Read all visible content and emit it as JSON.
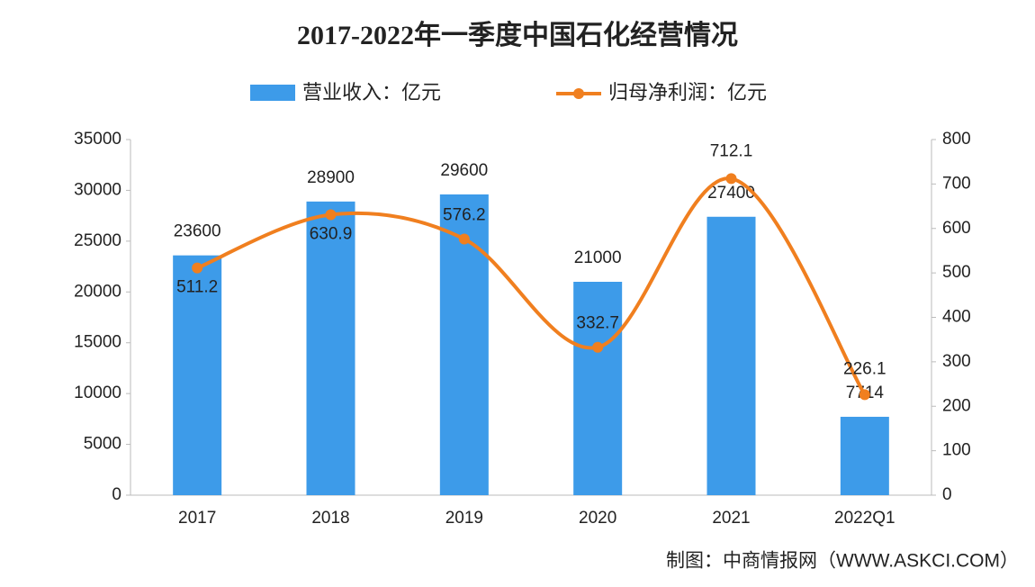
{
  "chart_data": {
    "type": "bar",
    "title": "2017-2022年一季度中国石化经营情况",
    "categories": [
      "2017",
      "2018",
      "2019",
      "2020",
      "2021",
      "2022Q1"
    ],
    "series": [
      {
        "name": "营业收入：亿元",
        "type": "bar",
        "color": "#3d9be9",
        "values": [
          23600,
          28900,
          29600,
          21000,
          27400,
          7714
        ]
      },
      {
        "name": "归母净利润：亿元",
        "type": "line",
        "axis": "y2",
        "color": "#f07f1f",
        "values": [
          511.2,
          630.9,
          576.2,
          332.7,
          712.1,
          226.1
        ]
      }
    ],
    "ylim": [
      0,
      35000
    ],
    "yticks": [
      0,
      5000,
      10000,
      15000,
      20000,
      25000,
      30000,
      35000
    ],
    "y2lim": [
      0,
      800
    ],
    "y2ticks": [
      0,
      100,
      200,
      300,
      400,
      500,
      600,
      700,
      800
    ],
    "source": "制图：中商情报网（WWW.ASKCI.COM）"
  }
}
